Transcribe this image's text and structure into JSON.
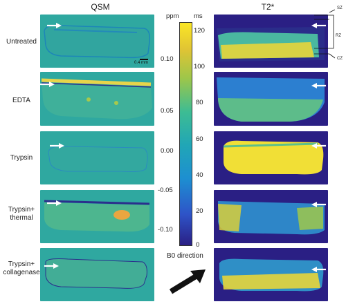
{
  "columns": {
    "qsm": "QSM",
    "t2": "T2*"
  },
  "rows": [
    {
      "label": "Untreated"
    },
    {
      "label": "EDTA"
    },
    {
      "label": "Trypsin"
    },
    {
      "label": "Trypsin+\nthermal"
    },
    {
      "label": "Trypsin+\ncollagenase"
    }
  ],
  "scale_bar": "0.4 mm",
  "zones": [
    "SZ",
    "RZ",
    "CZ"
  ],
  "colorbar": {
    "unit_left": "ppm",
    "unit_right": "ms",
    "ppm_ticks": [
      "0.10",
      "0.05",
      "0.00",
      "-0.05",
      "-0.10"
    ],
    "ms_ticks": [
      "120",
      "100",
      "80",
      "60",
      "40",
      "20",
      "0"
    ]
  },
  "b0_label": "B0 direction",
  "colors": {
    "qsm_bg": "#2fa8a0",
    "t2_bg": "#2a1f84",
    "colormap": [
      "#2a1f84",
      "#1f6fd1",
      "#21a6b6",
      "#5fc286",
      "#c9c331",
      "#fbe625"
    ]
  }
}
